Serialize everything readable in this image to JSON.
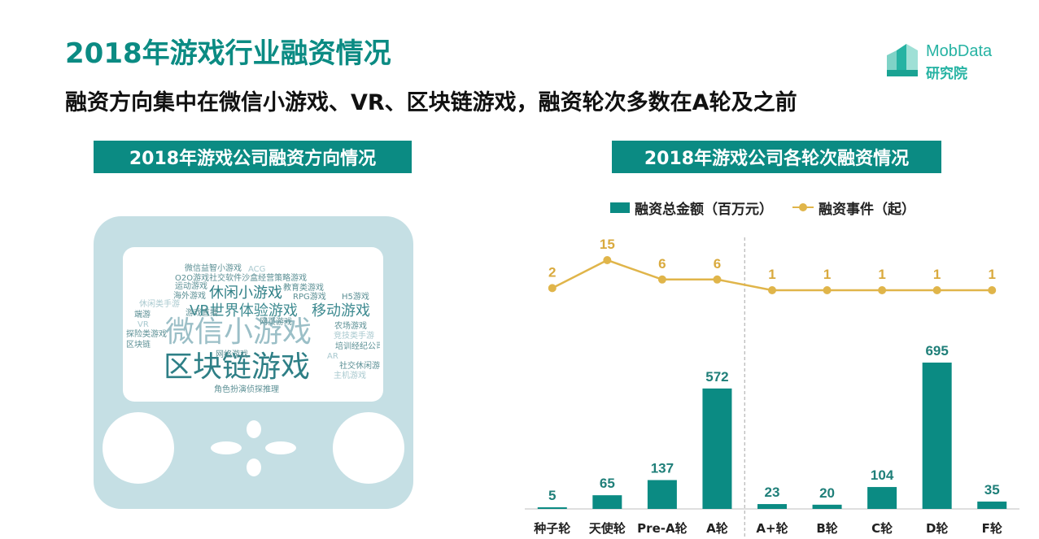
{
  "header": {
    "title": "2018年游戏行业融资情况",
    "subtitle": "融资方向集中在微信小游戏、VR、区块链游戏，融资轮次多数在A轮及之前",
    "logo_name": "MobData",
    "logo_sub": "研究院"
  },
  "left_panel": {
    "title": "2018年游戏公司融资方向情况",
    "word_cloud": [
      {
        "text": "微信小游戏",
        "color": "#9bbfc7"
      },
      {
        "text": "区块链游戏",
        "color": "#2e7f86"
      },
      {
        "text": "VR世界体验游戏",
        "color": "#3d8a90"
      },
      {
        "text": "移动游戏",
        "color": "#3d8a90"
      },
      {
        "text": "休闲小游戏",
        "color": "#2e7f86"
      },
      {
        "text": "微信益智小游戏",
        "color": "#5b8f94"
      },
      {
        "text": "ACG",
        "color": "#a9c9cf"
      },
      {
        "text": "O2O游戏社交软件沙盒经营策略游戏",
        "color": "#5b8f94"
      },
      {
        "text": "运动游戏",
        "color": "#5b8f94"
      },
      {
        "text": "教育类游戏",
        "color": "#5b8f94"
      },
      {
        "text": "海外游戏",
        "color": "#5b8f94"
      },
      {
        "text": "RPG游戏",
        "color": "#5b8f94"
      },
      {
        "text": "H5游戏",
        "color": "#5b8f94"
      },
      {
        "text": "休闲类手游",
        "color": "#a9c9cf"
      },
      {
        "text": "游戏直播",
        "color": "#5b8f94"
      },
      {
        "text": "端游",
        "color": "#5b8f94"
      },
      {
        "text": "网页游戏",
        "color": "#5b8f94"
      },
      {
        "text": "VR",
        "color": "#a9c9cf"
      },
      {
        "text": "农场游戏",
        "color": "#5b8f94"
      },
      {
        "text": "探险类游戏",
        "color": "#5b8f94"
      },
      {
        "text": "竞技类手游",
        "color": "#a9c9cf"
      },
      {
        "text": "区块链",
        "color": "#5b8f94"
      },
      {
        "text": "培训经纪公司",
        "color": "#5b8f94"
      },
      {
        "text": "网络游戏",
        "color": "#5b8f94"
      },
      {
        "text": "AR",
        "color": "#a9c9cf"
      },
      {
        "text": "社交休闲游戏",
        "color": "#5b8f94"
      },
      {
        "text": "主机游戏",
        "color": "#a9c9cf"
      },
      {
        "text": "角色扮演侦探推理",
        "color": "#5b8f94"
      }
    ]
  },
  "right_panel": {
    "title": "2018年游戏公司各轮次融资情况",
    "legend": {
      "bar_label": "融资总金额（百万元）",
      "line_label": "融资事件（起）"
    }
  },
  "chart_data": {
    "type": "bar",
    "categories": [
      "种子轮",
      "天使轮",
      "Pre-A轮",
      "A轮",
      "A+轮",
      "B轮",
      "C轮",
      "D轮",
      "F轮"
    ],
    "series": [
      {
        "name": "融资总金额（百万元）",
        "type": "bar",
        "values": [
          5,
          65,
          137,
          572,
          23,
          20,
          104,
          695,
          35
        ],
        "color": "#0b8b83"
      },
      {
        "name": "融资事件（起）",
        "type": "line",
        "values": [
          2,
          15,
          6,
          6,
          1,
          1,
          1,
          1,
          1
        ],
        "color": "#e0b54a"
      }
    ],
    "divider_after": "A轮",
    "legend_position": "top"
  }
}
